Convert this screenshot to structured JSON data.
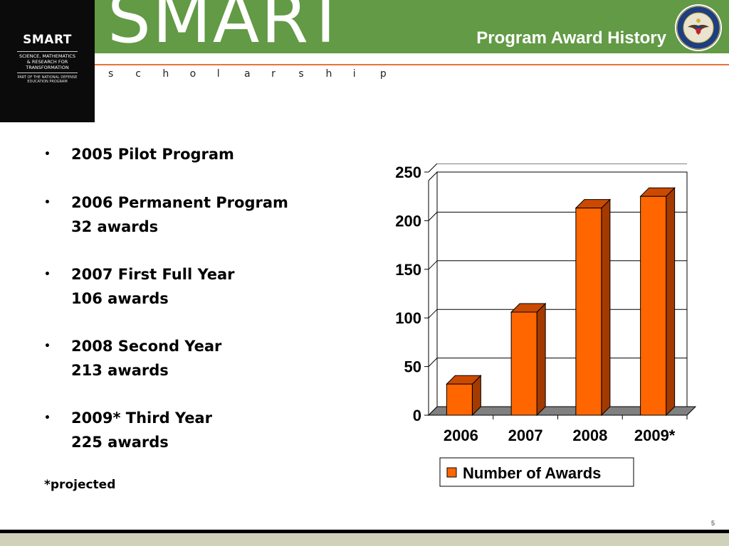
{
  "header": {
    "logo": {
      "title": "SMART",
      "subtitle_lines": [
        "SCIENCE, MATHEMATICS",
        "& RESEARCH FOR",
        "TRANSFORMATION"
      ],
      "tagline_lines": [
        "PART OF THE NATIONAL DEFENSE",
        "EDUCATION PROGRAM"
      ]
    },
    "brand": "SMART",
    "brand_sub": "scholarship",
    "slide_title": "Program Award History",
    "seal_icon": "department-of-defense-seal-icon"
  },
  "bullets": [
    {
      "line1": "2005 Pilot Program",
      "line2": ""
    },
    {
      "line1": "2006 Permanent Program",
      "line2": "32 awards"
    },
    {
      "line1": "2007 First Full Year",
      "line2": "106 awards"
    },
    {
      "line1": "2008 Second Year",
      "line2": "213 awards"
    },
    {
      "line1": "2009* Third Year",
      "line2": "225 awards"
    }
  ],
  "footnote": "*projected",
  "page_number": "5",
  "colors": {
    "green": "#629a45",
    "orange_rule": "#e8733a",
    "bar_front": "#ff6600",
    "bar_side": "#a33a00",
    "bar_top": "#cc4a00",
    "floor": "#808080"
  },
  "chart_data": {
    "type": "bar",
    "style": "3d",
    "categories": [
      "2006",
      "2007",
      "2008",
      "2009*"
    ],
    "series": [
      {
        "name": "Number of Awards",
        "values": [
          32,
          106,
          213,
          225
        ]
      }
    ],
    "yticks": [
      "0",
      "50",
      "100",
      "150",
      "200",
      "250"
    ],
    "ylim": [
      0,
      250
    ],
    "grid": true,
    "legend": "bottom"
  }
}
